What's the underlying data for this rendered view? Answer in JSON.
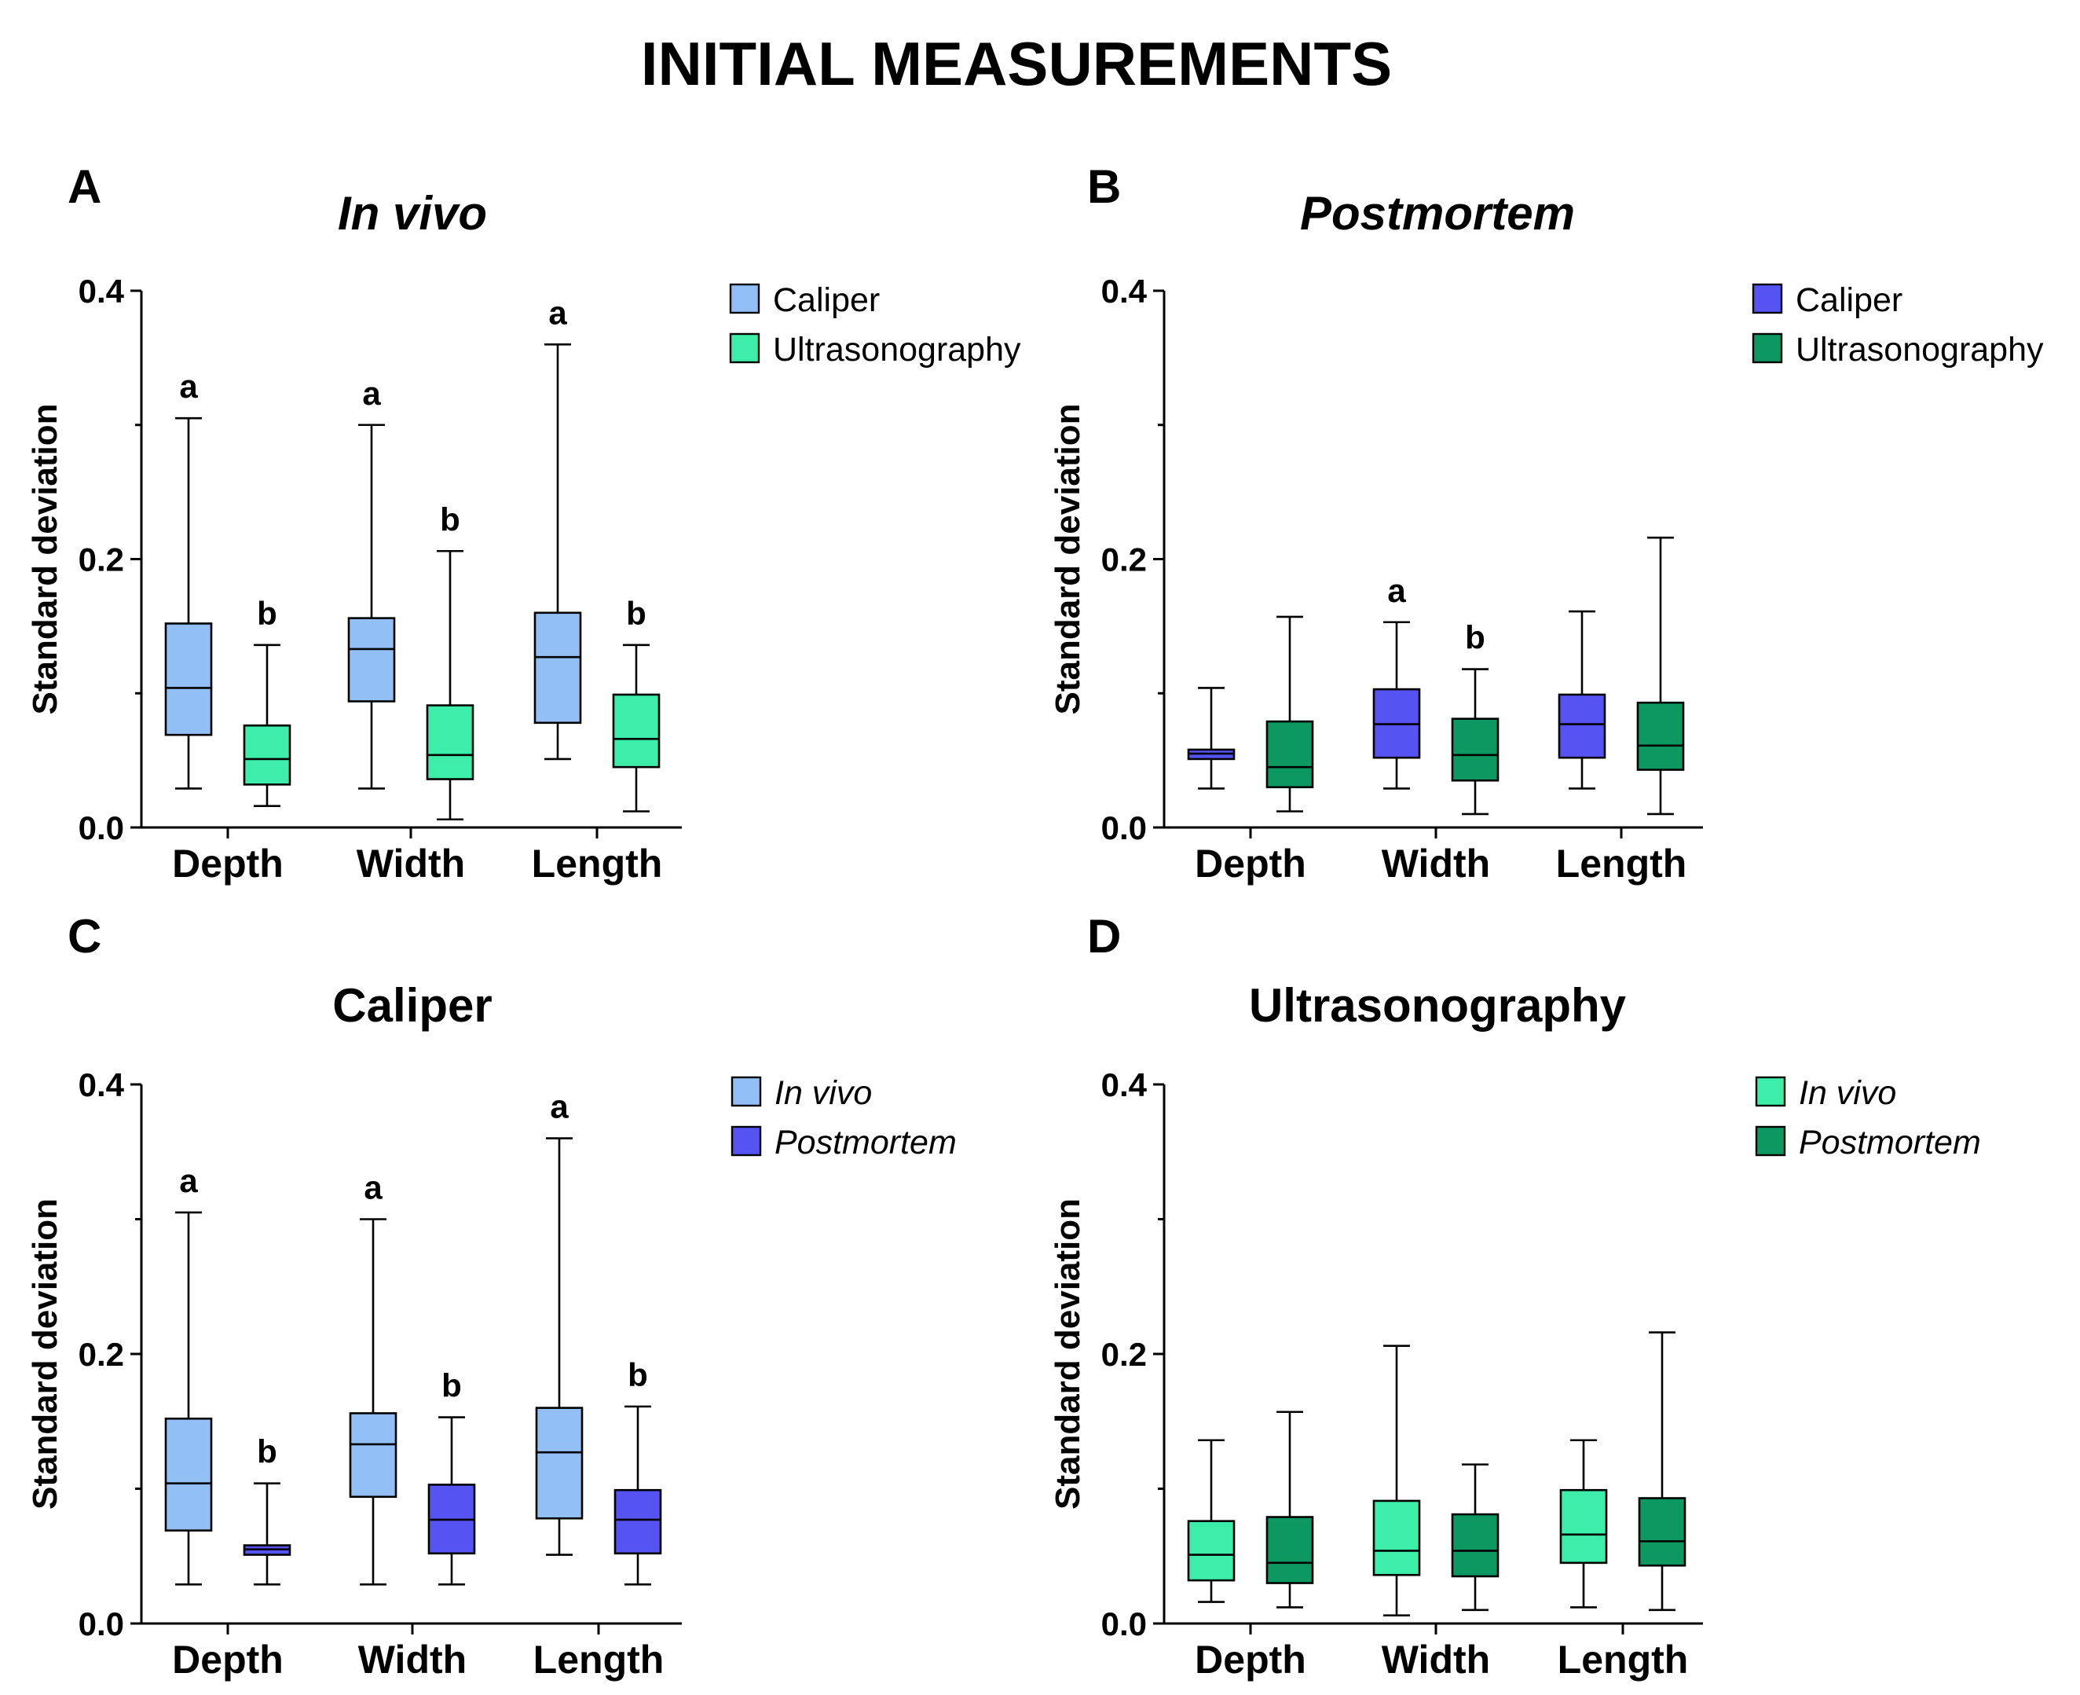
{
  "title": "INITIAL MEASUREMENTS",
  "colors": {
    "caliper_in_vivo": "#92bff5",
    "ultrasonography_in_vivo": "#3ceeaa",
    "caliper_postmortem": "#5553f2",
    "ultrasonography_postmortem": "#0c9860"
  },
  "chart_data": [
    {
      "type": "box",
      "panel": "A",
      "title": "In vivo",
      "title_italic": true,
      "ylabel": "Standard deviation",
      "ylim": [
        0,
        0.4
      ],
      "yticks": [
        "0.0",
        "0.2",
        "0.4"
      ],
      "categories": [
        "Depth",
        "Width",
        "Length"
      ],
      "legend_position": "top-right",
      "series": [
        {
          "name": "Caliper",
          "italic": false,
          "color": "#92bff5",
          "boxes": [
            {
              "min": 0.029,
              "q1": 0.069,
              "median": 0.104,
              "q3": 0.152,
              "max": 0.305,
              "label": "a"
            },
            {
              "min": 0.029,
              "q1": 0.094,
              "median": 0.133,
              "q3": 0.156,
              "max": 0.3,
              "label": "a"
            },
            {
              "min": 0.051,
              "q1": 0.078,
              "median": 0.127,
              "q3": 0.16,
              "max": 0.36,
              "label": "a"
            }
          ]
        },
        {
          "name": "Ultrasonography",
          "italic": false,
          "color": "#3ceeaa",
          "boxes": [
            {
              "min": 0.016,
              "q1": 0.032,
              "median": 0.051,
              "q3": 0.076,
              "max": 0.136,
              "label": "b"
            },
            {
              "min": 0.006,
              "q1": 0.036,
              "median": 0.054,
              "q3": 0.091,
              "max": 0.206,
              "label": "b"
            },
            {
              "min": 0.012,
              "q1": 0.045,
              "median": 0.066,
              "q3": 0.099,
              "max": 0.136,
              "label": "b"
            }
          ]
        }
      ]
    },
    {
      "type": "box",
      "panel": "B",
      "title": "Postmortem",
      "title_italic": true,
      "ylabel": "Standard deviation",
      "ylim": [
        0,
        0.4
      ],
      "yticks": [
        "0.0",
        "0.2",
        "0.4"
      ],
      "categories": [
        "Depth",
        "Width",
        "Length"
      ],
      "legend_position": "top-right",
      "series": [
        {
          "name": "Caliper",
          "italic": false,
          "color": "#5553f2",
          "boxes": [
            {
              "min": 0.029,
              "q1": 0.051,
              "median": 0.055,
              "q3": 0.058,
              "max": 0.104,
              "label": ""
            },
            {
              "min": 0.029,
              "q1": 0.052,
              "median": 0.077,
              "q3": 0.103,
              "max": 0.153,
              "label": "a"
            },
            {
              "min": 0.029,
              "q1": 0.052,
              "median": 0.077,
              "q3": 0.099,
              "max": 0.161,
              "label": ""
            }
          ]
        },
        {
          "name": "Ultrasonography",
          "italic": false,
          "color": "#0c9860",
          "boxes": [
            {
              "min": 0.012,
              "q1": 0.03,
              "median": 0.045,
              "q3": 0.079,
              "max": 0.157,
              "label": ""
            },
            {
              "min": 0.01,
              "q1": 0.035,
              "median": 0.054,
              "q3": 0.081,
              "max": 0.118,
              "label": "b"
            },
            {
              "min": 0.01,
              "q1": 0.043,
              "median": 0.061,
              "q3": 0.093,
              "max": 0.216,
              "label": ""
            }
          ]
        }
      ]
    },
    {
      "type": "box",
      "panel": "C",
      "title": "Caliper",
      "title_italic": false,
      "ylabel": "Standard deviation",
      "ylim": [
        0,
        0.4
      ],
      "yticks": [
        "0.0",
        "0.2",
        "0.4"
      ],
      "categories": [
        "Depth",
        "Width",
        "Length"
      ],
      "legend_position": "top-right",
      "series": [
        {
          "name": "In vivo",
          "italic": true,
          "color": "#92bff5",
          "boxes": [
            {
              "min": 0.029,
              "q1": 0.069,
              "median": 0.104,
              "q3": 0.152,
              "max": 0.305,
              "label": "a"
            },
            {
              "min": 0.029,
              "q1": 0.094,
              "median": 0.133,
              "q3": 0.156,
              "max": 0.3,
              "label": "a"
            },
            {
              "min": 0.051,
              "q1": 0.078,
              "median": 0.127,
              "q3": 0.16,
              "max": 0.36,
              "label": "a"
            }
          ]
        },
        {
          "name": "Postmortem",
          "italic": true,
          "color": "#5553f2",
          "boxes": [
            {
              "min": 0.029,
              "q1": 0.051,
              "median": 0.055,
              "q3": 0.058,
              "max": 0.104,
              "label": "b"
            },
            {
              "min": 0.029,
              "q1": 0.052,
              "median": 0.077,
              "q3": 0.103,
              "max": 0.153,
              "label": "b"
            },
            {
              "min": 0.029,
              "q1": 0.052,
              "median": 0.077,
              "q3": 0.099,
              "max": 0.161,
              "label": "b"
            }
          ]
        }
      ]
    },
    {
      "type": "box",
      "panel": "D",
      "title": "Ultrasonography",
      "title_italic": false,
      "ylabel": "Standard deviation",
      "ylim": [
        0,
        0.4
      ],
      "yticks": [
        "0.0",
        "0.2",
        "0.4"
      ],
      "categories": [
        "Depth",
        "Width",
        "Length"
      ],
      "legend_position": "top-right",
      "series": [
        {
          "name": "In vivo",
          "italic": true,
          "color": "#3ceeaa",
          "boxes": [
            {
              "min": 0.016,
              "q1": 0.032,
              "median": 0.051,
              "q3": 0.076,
              "max": 0.136,
              "label": ""
            },
            {
              "min": 0.006,
              "q1": 0.036,
              "median": 0.054,
              "q3": 0.091,
              "max": 0.206,
              "label": ""
            },
            {
              "min": 0.012,
              "q1": 0.045,
              "median": 0.066,
              "q3": 0.099,
              "max": 0.136,
              "label": ""
            }
          ]
        },
        {
          "name": "Postmortem",
          "italic": true,
          "color": "#0c9860",
          "boxes": [
            {
              "min": 0.012,
              "q1": 0.03,
              "median": 0.045,
              "q3": 0.079,
              "max": 0.157,
              "label": ""
            },
            {
              "min": 0.01,
              "q1": 0.035,
              "median": 0.054,
              "q3": 0.081,
              "max": 0.118,
              "label": ""
            },
            {
              "min": 0.01,
              "q1": 0.043,
              "median": 0.061,
              "q3": 0.093,
              "max": 0.216,
              "label": ""
            }
          ]
        }
      ]
    }
  ]
}
